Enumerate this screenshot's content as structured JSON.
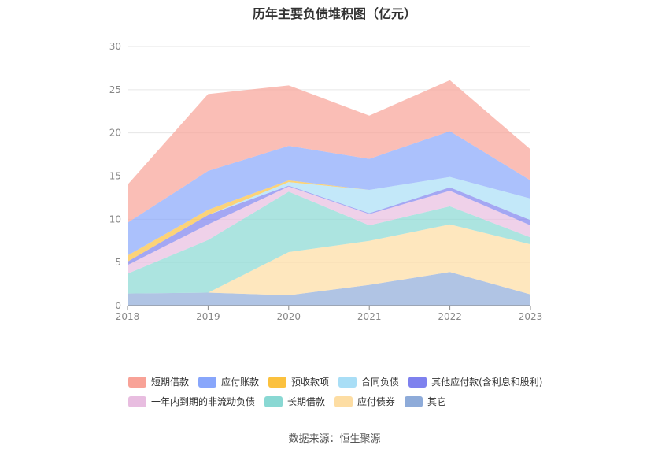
{
  "chart_data": {
    "type": "area",
    "stacked": true,
    "title": "历年主要负债堆积图（亿元）",
    "x": [
      "2018",
      "2019",
      "2020",
      "2021",
      "2022",
      "2023"
    ],
    "ylim": [
      0,
      30
    ],
    "yticks": [
      0,
      5,
      10,
      15,
      20,
      25,
      30
    ],
    "grid": true,
    "legend_position": "bottom",
    "series": [
      {
        "name": "其它",
        "color": "#8eabd9",
        "values": [
          1.4,
          1.5,
          1.2,
          2.4,
          3.9,
          1.3
        ]
      },
      {
        "name": "应付债券",
        "color": "#fddda3",
        "values": [
          0.0,
          0.0,
          5.0,
          5.1,
          5.5,
          5.8
        ]
      },
      {
        "name": "长期借款",
        "color": "#89d8d3",
        "values": [
          2.3,
          6.1,
          7.0,
          1.8,
          2.1,
          0.8
        ]
      },
      {
        "name": "一年内到期的非流动负债",
        "color": "#e8bde0",
        "values": [
          1.0,
          1.8,
          0.6,
          1.3,
          1.8,
          1.4
        ]
      },
      {
        "name": "其他应付款(含利息和股利)",
        "color": "#7e81ee",
        "values": [
          0.4,
          1.1,
          0.1,
          0.1,
          0.4,
          0.6
        ]
      },
      {
        "name": "合同负债",
        "color": "#a9def6",
        "values": [
          0.0,
          0.0,
          0.4,
          2.7,
          1.2,
          2.5
        ]
      },
      {
        "name": "预收款项",
        "color": "#fbc13e",
        "values": [
          0.7,
          0.6,
          0.2,
          0.0,
          0.0,
          0.0
        ]
      },
      {
        "name": "应付账款",
        "color": "#88a6fb",
        "values": [
          3.8,
          4.5,
          4.0,
          3.6,
          5.3,
          2.1
        ]
      },
      {
        "name": "短期借款",
        "color": "#f8a297",
        "values": [
          4.4,
          8.9,
          7.0,
          5.0,
          5.9,
          3.6
        ]
      }
    ]
  },
  "legend": {
    "row1": [
      "短期借款",
      "应付账款",
      "预收款项",
      "合同负债",
      "其他应付款(含利息和股利)"
    ],
    "row2": [
      "一年内到期的非流动负债",
      "长期借款",
      "应付债券",
      "其它"
    ]
  },
  "colors": {
    "短期借款": "#f8a297",
    "应付账款": "#88a6fb",
    "预收款项": "#fbc13e",
    "合同负债": "#a9def6",
    "其他应付款(含利息和股利)": "#7e81ee",
    "一年内到期的非流动负债": "#e8bde0",
    "长期借款": "#89d8d3",
    "应付债券": "#fddda3",
    "其它": "#8eabd9"
  },
  "source": "数据来源：恒生聚源"
}
